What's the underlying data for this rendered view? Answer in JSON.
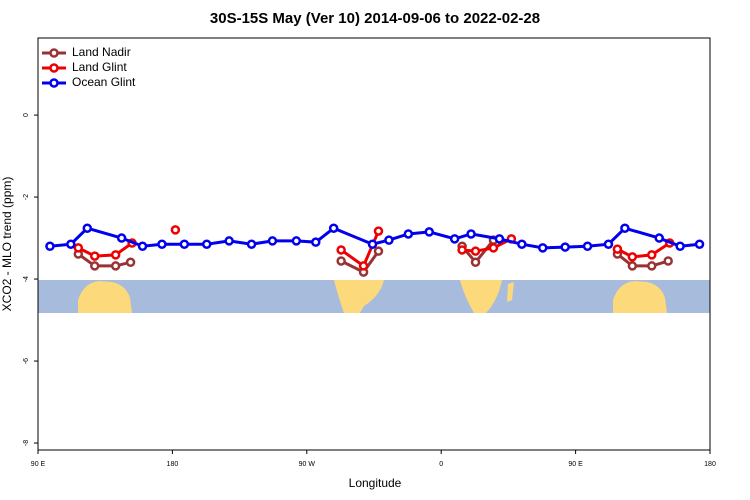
{
  "chart_data": {
    "type": "line",
    "title": "30S-15S May (Ver 10)   2014-09-06 to 2022-02-28",
    "x_label": "Longitude",
    "y_label": "XCO2 - MLO trend (ppm)",
    "xlim": [
      90,
      540
    ],
    "xticks": [
      {
        "value": 90,
        "label": "90 E"
      },
      180,
      {
        "value": 270,
        "label": "90 W"
      },
      {
        "value": 360,
        "label": "0"
      },
      {
        "value": 450,
        "label": "90 E"
      },
      {
        "value": 540,
        "label": "180"
      }
    ],
    "ylim": [
      -8.17,
      1.88
    ],
    "yticks": [
      0,
      -2,
      -4,
      -6,
      -8
    ],
    "legend": "top-left",
    "series": [
      {
        "name": "Land Nadir",
        "color": "#993333",
        "x": [
          117,
          128,
          142,
          152,
          null,
          293,
          308,
          318,
          null,
          374,
          383,
          395,
          null,
          478,
          488,
          501,
          512
        ],
        "values": [
          -3.39,
          -3.68,
          -3.68,
          -3.59,
          null,
          -3.56,
          -3.83,
          -3.32,
          null,
          -3.2,
          -3.59,
          -3.05,
          null,
          -3.39,
          -3.68,
          -3.68,
          -3.56
        ]
      },
      {
        "name": "Land Glint",
        "color": "#ee0000",
        "x": [
          117,
          128,
          142,
          153,
          null,
          182,
          null,
          293,
          308,
          318,
          null,
          374,
          383,
          395,
          407,
          null,
          478,
          488,
          501,
          513
        ],
        "values": [
          -3.24,
          -3.44,
          -3.41,
          -3.12,
          null,
          -2.8,
          null,
          -3.29,
          -3.68,
          -2.83,
          null,
          -3.29,
          -3.32,
          -3.24,
          -3.02,
          null,
          -3.27,
          -3.46,
          -3.41,
          -3.12
        ]
      },
      {
        "name": "Ocean Glint",
        "color": "#0000ee",
        "x": [
          98,
          112,
          123,
          146,
          160,
          173,
          188,
          203,
          218,
          233,
          247,
          263,
          276,
          288,
          314,
          325,
          338,
          352,
          369,
          380,
          399,
          414,
          428,
          443,
          458,
          472,
          483,
          506,
          520,
          533
        ],
        "values": [
          -3.2,
          -3.15,
          -2.76,
          -3.0,
          -3.2,
          -3.15,
          -3.15,
          -3.15,
          -3.07,
          -3.15,
          -3.07,
          -3.07,
          -3.1,
          -2.76,
          -3.15,
          -3.05,
          -2.9,
          -2.85,
          -3.02,
          -2.9,
          -3.02,
          -3.15,
          -3.24,
          -3.22,
          -3.2,
          -3.15,
          -2.76,
          -3.0,
          -3.2,
          -3.15
        ]
      }
    ]
  }
}
